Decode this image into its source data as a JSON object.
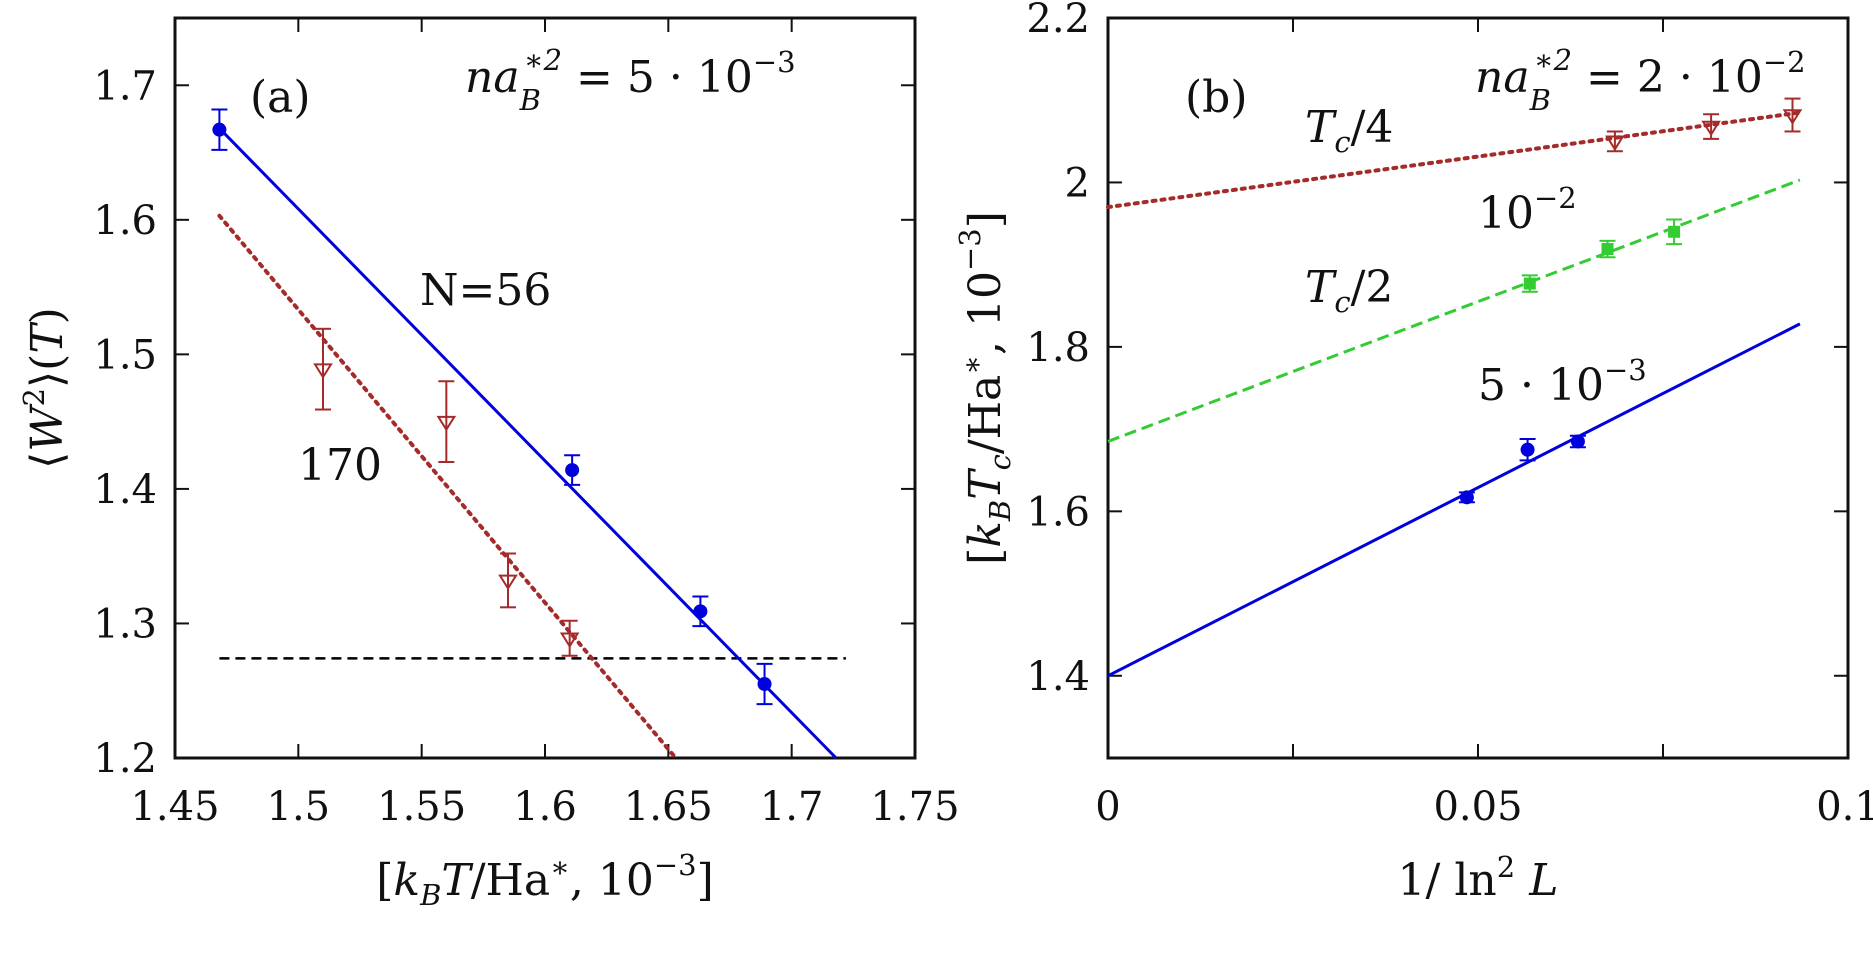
{
  "chart_data": [
    {
      "panel_label": "(a)",
      "type": "scatter",
      "xlabel": "[k_B T/Ha*, 10^-3]",
      "ylabel": "⟨W²⟩(T)",
      "xlim": [
        1.45,
        1.75
      ],
      "ylim": [
        1.2,
        1.75
      ],
      "xticks": [
        "1.45",
        "1.5",
        "1.55",
        "1.6",
        "1.65",
        "1.7",
        "1.75"
      ],
      "yticks": [
        "1.2",
        "1.3",
        "1.4",
        "1.5",
        "1.6",
        "1.7"
      ],
      "annotation": "na_B*² = 5·10^-3",
      "series": [
        {
          "name": "N=56",
          "color": "#0000dd",
          "marker": "filled-circle",
          "line_style": "solid",
          "points": [
            {
              "x": 1.468,
              "y": 1.667,
              "err": 0.015
            },
            {
              "x": 1.611,
              "y": 1.414,
              "err": 0.011
            },
            {
              "x": 1.663,
              "y": 1.309,
              "err": 0.011
            },
            {
              "x": 1.689,
              "y": 1.255,
              "err": 0.015
            }
          ],
          "fit_line": [
            [
              1.468,
              1.668
            ],
            [
              1.718,
              1.2
            ]
          ]
        },
        {
          "name": "170",
          "color": "#a52a2a",
          "marker": "open-triangle-down",
          "line_style": "dotted",
          "points": [
            {
              "x": 1.51,
              "y": 1.489,
              "err": 0.03
            },
            {
              "x": 1.56,
              "y": 1.45,
              "err": 0.03
            },
            {
              "x": 1.585,
              "y": 1.332,
              "err": 0.02
            },
            {
              "x": 1.61,
              "y": 1.289,
              "err": 0.013
            }
          ],
          "fit_line": [
            [
              1.468,
              1.603
            ],
            [
              1.653,
              1.2
            ]
          ]
        }
      ],
      "reference_line": {
        "y": 1.274,
        "x": [
          1.468,
          1.722
        ],
        "style": "dashed",
        "color": "#000000"
      }
    },
    {
      "panel_label": "(b)",
      "type": "scatter",
      "xlabel": "1/ ln² L",
      "ylabel": "[k_B T_c/Ha*, 10^-3]",
      "xlim": [
        0,
        0.1
      ],
      "ylim": [
        1.3,
        2.2
      ],
      "xticks": [
        "0",
        "0.05",
        "0.1"
      ],
      "yticks": [
        "1.4",
        "1.6",
        "1.8",
        "2",
        "2.2"
      ],
      "annotation": "na_B*² = 2·10^-2",
      "series": [
        {
          "name": "T_c/4",
          "color": "#a52a2a",
          "marker": "open-triangle-down",
          "line_style": "dotted",
          "points": [
            {
              "x": 0.0685,
              "y": 2.05,
              "err": 0.012
            },
            {
              "x": 0.0815,
              "y": 2.068,
              "err": 0.015
            },
            {
              "x": 0.0925,
              "y": 2.082,
              "err": 0.02
            }
          ],
          "fit_line": [
            [
              0,
              1.97
            ],
            [
              0.0935,
              2.085
            ]
          ]
        },
        {
          "name": "10^-2",
          "label2": "T_c/2",
          "color": "#33cc33",
          "marker": "filled-square",
          "line_style": "dashed",
          "points": [
            {
              "x": 0.057,
              "y": 1.877,
              "err": 0.01
            },
            {
              "x": 0.0675,
              "y": 1.919,
              "err": 0.01
            },
            {
              "x": 0.0765,
              "y": 1.94,
              "err": 0.015
            }
          ],
          "fit_line": [
            [
              0,
              1.685
            ],
            [
              0.0935,
              2.003
            ]
          ]
        },
        {
          "name": "5·10^-3",
          "color": "#0000dd",
          "marker": "filled-circle",
          "line_style": "solid",
          "points": [
            {
              "x": 0.0485,
              "y": 1.617,
              "err": 0.006
            },
            {
              "x": 0.0567,
              "y": 1.675,
              "err": 0.013
            },
            {
              "x": 0.0635,
              "y": 1.685,
              "err": 0.007
            }
          ],
          "fit_line": [
            [
              0,
              1.4
            ],
            [
              0.0935,
              1.828
            ]
          ]
        }
      ]
    }
  ]
}
